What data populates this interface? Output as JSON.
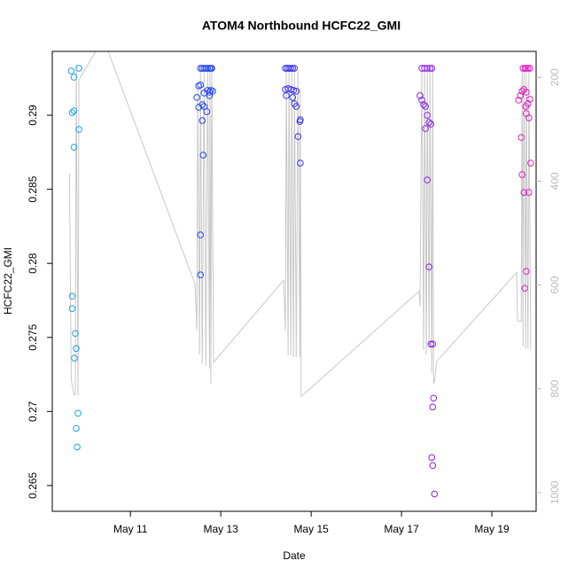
{
  "chart_data": {
    "type": "scatter",
    "title": "ATOM4 Northbound HCFC22_GMI",
    "xlabel": "Date",
    "ylabel": "HCFC22_GMI",
    "xlim": [
      9.27,
      19.98
    ],
    "xticks": [
      {
        "value": 11,
        "label": "May 11"
      },
      {
        "value": 13,
        "label": "May 13"
      },
      {
        "value": 15,
        "label": "May 15"
      },
      {
        "value": 17,
        "label": "May 17"
      },
      {
        "value": 19,
        "label": "May 19"
      }
    ],
    "ylim": [
      0.26326,
      0.29431
    ],
    "yticks": [
      0.265,
      0.27,
      0.275,
      0.28,
      0.285,
      0.29
    ],
    "y2lim": [
      150,
      1036
    ],
    "y2_inverted": true,
    "y2ticks": [
      200,
      400,
      600,
      800,
      1000
    ],
    "y2_axis_color": "#bbbbbb",
    "series": [
      {
        "type": "scatter",
        "color": "#1ea0e6",
        "x": [
          9.69,
          9.75,
          9.71,
          9.75,
          9.86,
          9.75,
          9.71,
          9.71,
          9.78,
          9.8,
          9.76,
          9.84,
          9.8,
          9.82,
          9.86
        ],
        "values": [
          0.29299,
          0.29257,
          0.29018,
          0.2903,
          0.28904,
          0.28784,
          0.27778,
          0.27695,
          0.27527,
          0.27425,
          0.2736,
          0.26988,
          0.26886,
          0.2676,
          0.29317
        ]
      },
      {
        "type": "scatter",
        "color": "#2246f0",
        "x": [
          12.55,
          12.59,
          12.63,
          12.67,
          12.71,
          12.75,
          12.78,
          12.8,
          12.51,
          12.55,
          12.47,
          12.63,
          12.71,
          12.75,
          12.78,
          12.82,
          12.51,
          12.59,
          12.63,
          12.69,
          12.75,
          12.59,
          12.61,
          12.55,
          12.55
        ],
        "values": [
          0.29317,
          0.29317,
          0.29317,
          0.29317,
          0.29317,
          0.29317,
          0.29317,
          0.29317,
          0.29198,
          0.29204,
          0.2912,
          0.2915,
          0.29168,
          0.29156,
          0.29168,
          0.29162,
          0.29054,
          0.29072,
          0.2906,
          0.29024,
          0.29132,
          0.28964,
          0.28731,
          0.28192,
          0.27922
        ]
      },
      {
        "type": "scatter",
        "color": "#3a30e8",
        "x": [
          14.43,
          14.47,
          14.51,
          14.55,
          14.59,
          14.63,
          14.43,
          14.49,
          14.55,
          14.61,
          14.67,
          14.45,
          14.59,
          14.63,
          14.67,
          14.75,
          14.76,
          14.71,
          14.76
        ],
        "values": [
          0.29317,
          0.29317,
          0.29317,
          0.29317,
          0.29317,
          0.29317,
          0.29174,
          0.2918,
          0.29174,
          0.29168,
          0.29162,
          0.29132,
          0.2912,
          0.29078,
          0.2906,
          0.28958,
          0.2897,
          0.28856,
          0.28677
        ]
      },
      {
        "type": "scatter",
        "color": "#8a24e0",
        "x": [
          17.45,
          17.51,
          17.57,
          17.63,
          17.67,
          17.41,
          17.45,
          17.49,
          17.53,
          17.57,
          17.61,
          17.65,
          17.53,
          17.57,
          17.61,
          17.65,
          17.69,
          17.71,
          17.69,
          17.67,
          17.69,
          17.73
        ],
        "values": [
          0.29317,
          0.29317,
          0.29317,
          0.29317,
          0.29317,
          0.29132,
          0.29102,
          0.29072,
          0.2906,
          0.29,
          0.28952,
          0.2894,
          0.2891,
          0.28563,
          0.27976,
          0.27455,
          0.27455,
          0.2709,
          0.2703,
          0.26689,
          0.26635,
          0.26443
        ]
      },
      {
        "type": "scatter",
        "color": "#e020c0",
        "x": [
          19.69,
          19.73,
          19.76,
          19.8,
          19.84,
          19.59,
          19.63,
          19.67,
          19.71,
          19.76,
          19.8,
          19.84,
          19.76,
          19.82,
          19.75,
          19.65,
          19.67,
          19.71,
          19.82,
          19.76,
          19.73,
          19.86
        ],
        "values": [
          0.29317,
          0.29317,
          0.29317,
          0.29317,
          0.29317,
          0.29102,
          0.29132,
          0.29162,
          0.29174,
          0.29156,
          0.29078,
          0.29108,
          0.29012,
          0.28982,
          0.2906,
          0.2885,
          0.28599,
          0.28479,
          0.28479,
          0.27946,
          0.27832,
          0.28677
        ]
      },
      {
        "type": "line",
        "axis": "y2",
        "color": "#c8c8c8",
        "x": [
          9.65,
          9.69,
          9.75,
          9.78,
          9.8,
          9.84,
          9.86,
          10.4,
          12.43,
          12.47,
          12.49,
          12.53,
          12.55,
          12.59,
          12.63,
          12.67,
          12.71,
          12.75,
          12.76,
          12.78,
          12.8,
          12.84,
          14.39,
          14.43,
          14.45,
          14.49,
          14.51,
          14.55,
          14.57,
          14.61,
          14.63,
          14.67,
          14.71,
          14.75,
          14.76,
          14.78,
          17.39,
          17.41,
          17.45,
          17.49,
          17.51,
          17.55,
          17.57,
          17.61,
          17.63,
          17.67,
          17.69,
          17.71,
          17.73,
          17.78,
          19.55,
          19.57,
          19.65,
          19.67,
          19.69,
          19.71,
          19.75,
          19.76,
          19.8,
          19.82,
          19.86
        ],
        "values": [
          385,
          783,
          812,
          812,
          174,
          812,
          205,
          125,
          598,
          687,
          222,
          735,
          188,
          752,
          188,
          756,
          188,
          761,
          188,
          790,
          188,
          749,
          591,
          687,
          188,
          735,
          188,
          735,
          188,
          739,
          188,
          739,
          188,
          739,
          222,
          815,
          612,
          641,
          188,
          726,
          188,
          735,
          188,
          715,
          188,
          769,
          188,
          790,
          786,
          747,
          576,
          670,
          670,
          188,
          718,
          188,
          723,
          188,
          723,
          188,
          725
        ]
      }
    ]
  }
}
